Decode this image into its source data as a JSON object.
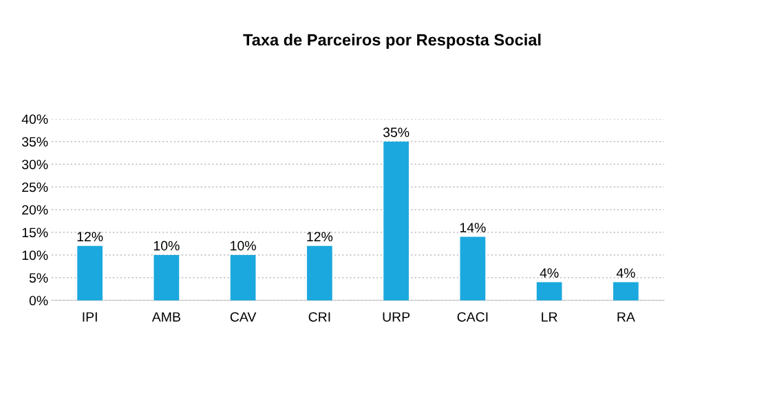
{
  "chart_data": {
    "type": "bar",
    "title": "Taxa de Parceiros por Resposta Social",
    "categories": [
      "IPI",
      "AMB",
      "CAV",
      "CRI",
      "URP",
      "CACI",
      "LR",
      "RA"
    ],
    "values": [
      12,
      10,
      10,
      12,
      35,
      14,
      4,
      4
    ],
    "value_labels": [
      "12%",
      "10%",
      "10%",
      "12%",
      "35%",
      "14%",
      "4%",
      "4%"
    ],
    "color": "#1ba8de",
    "ylim": [
      0,
      40
    ],
    "yticks": [
      {
        "value": 0,
        "label": "0%"
      },
      {
        "value": 5,
        "label": "5%"
      },
      {
        "value": 10,
        "label": "10%"
      },
      {
        "value": 15,
        "label": "15%"
      },
      {
        "value": 20,
        "label": "20%"
      },
      {
        "value": 25,
        "label": "25%"
      },
      {
        "value": 30,
        "label": "30%"
      },
      {
        "value": 35,
        "label": "35%"
      },
      {
        "value": 40,
        "label": "40%"
      }
    ],
    "grid": "y"
  }
}
